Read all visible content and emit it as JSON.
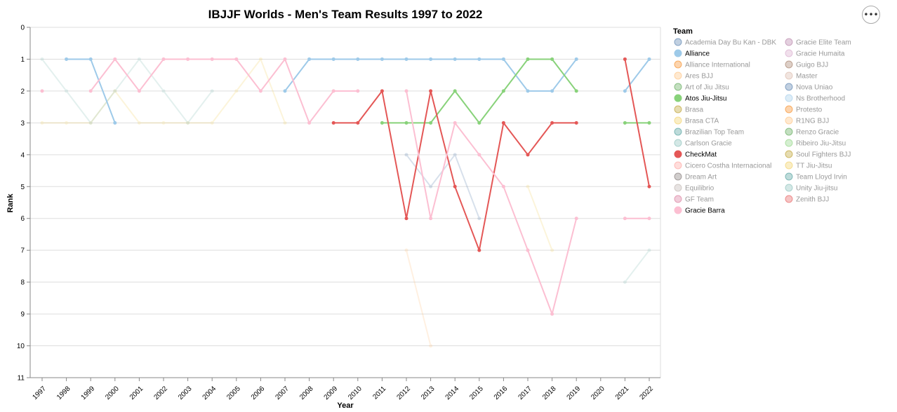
{
  "chart_data": {
    "type": "line",
    "title": "IBJJF Worlds - Men's Team Results 1997 to 2022",
    "xlabel": "Year",
    "ylabel": "Rank",
    "x": [
      "1997",
      "1998",
      "1999",
      "2000",
      "2001",
      "2002",
      "2003",
      "2004",
      "2005",
      "2006",
      "2007",
      "2008",
      "2009",
      "2010",
      "2011",
      "2012",
      "2013",
      "2014",
      "2015",
      "2016",
      "2017",
      "2018",
      "2019",
      "2020",
      "2021",
      "2022"
    ],
    "y_ticks": [
      "0",
      "1",
      "2",
      "3",
      "4",
      "5",
      "6",
      "7",
      "8",
      "9",
      "10",
      "11"
    ],
    "ylim": [
      0,
      11
    ],
    "y_reversed": true,
    "grid": "horizontal",
    "legend": {
      "title": "Team",
      "placement": "right",
      "columns": 2
    },
    "series": [
      {
        "name": "Academia Day Bu Kan - DBK",
        "color": "#4c78a8",
        "highlight": false,
        "points": []
      },
      {
        "name": "Alliance",
        "color": "#9ecae9",
        "highlight": true,
        "points": [
          [
            "1998",
            1
          ],
          [
            "1999",
            1
          ],
          [
            "2000",
            3
          ],
          [
            "2007",
            2
          ],
          [
            "2008",
            1
          ],
          [
            "2009",
            1
          ],
          [
            "2010",
            1
          ],
          [
            "2011",
            1
          ],
          [
            "2012",
            1
          ],
          [
            "2013",
            1
          ],
          [
            "2014",
            1
          ],
          [
            "2015",
            1
          ],
          [
            "2016",
            1
          ],
          [
            "2017",
            2
          ],
          [
            "2018",
            2
          ],
          [
            "2019",
            1
          ],
          [
            "2021",
            2
          ],
          [
            "2022",
            1
          ]
        ]
      },
      {
        "name": "Alliance International",
        "color": "#f58518",
        "highlight": false,
        "points": []
      },
      {
        "name": "Ares BJJ",
        "color": "#ffbf79",
        "highlight": false,
        "points": [
          [
            "2012",
            7
          ],
          [
            "2013",
            10
          ]
        ]
      },
      {
        "name": "Art of Jiu Jitsu",
        "color": "#54a24b",
        "highlight": false,
        "points": []
      },
      {
        "name": "Atos Jiu-Jitsu",
        "color": "#88d27a",
        "highlight": true,
        "points": [
          [
            "2011",
            3
          ],
          [
            "2012",
            3
          ],
          [
            "2013",
            3
          ],
          [
            "2014",
            2
          ],
          [
            "2015",
            3
          ],
          [
            "2016",
            2
          ],
          [
            "2017",
            1
          ],
          [
            "2018",
            1
          ],
          [
            "2019",
            2
          ],
          [
            "2021",
            3
          ],
          [
            "2022",
            3
          ]
        ]
      },
      {
        "name": "Brasa",
        "color": "#b79a20",
        "highlight": false,
        "points": []
      },
      {
        "name": "Brasa CTA",
        "color": "#f2cf5b",
        "highlight": false,
        "points": [
          [
            "1997",
            3
          ],
          [
            "1998",
            3
          ],
          [
            "1999",
            3
          ],
          [
            "2000",
            2
          ],
          [
            "2001",
            3
          ],
          [
            "2002",
            3
          ],
          [
            "2003",
            3
          ],
          [
            "2004",
            3
          ],
          [
            "2005",
            2
          ],
          [
            "2006",
            1
          ],
          [
            "2007",
            3
          ]
        ]
      },
      {
        "name": "Brazilian Top Team",
        "color": "#439894",
        "highlight": false,
        "points": []
      },
      {
        "name": "Carlson Gracie",
        "color": "#83bcb6",
        "highlight": false,
        "points": [
          [
            "1997",
            1
          ],
          [
            "1998",
            2
          ],
          [
            "1999",
            3
          ],
          [
            "2000",
            2
          ],
          [
            "2001",
            1
          ],
          [
            "2002",
            2
          ],
          [
            "2003",
            3
          ],
          [
            "2004",
            2
          ]
        ]
      },
      {
        "name": "CheckMat",
        "color": "#e45756",
        "highlight": true,
        "points": [
          [
            "2009",
            3
          ],
          [
            "2010",
            3
          ],
          [
            "2011",
            2
          ],
          [
            "2012",
            6
          ],
          [
            "2013",
            2
          ],
          [
            "2014",
            5
          ],
          [
            "2015",
            7
          ],
          [
            "2016",
            3
          ],
          [
            "2017",
            4
          ],
          [
            "2018",
            3
          ],
          [
            "2019",
            3
          ],
          [
            "2021",
            1
          ],
          [
            "2022",
            5
          ]
        ]
      },
      {
        "name": "Cicero Costha Internacional",
        "color": "#ff9d98",
        "highlight": false,
        "points": []
      },
      {
        "name": "Dream Art",
        "color": "#79706e",
        "highlight": false,
        "points": []
      },
      {
        "name": "Equilibrio",
        "color": "#bab0ac",
        "highlight": false,
        "points": []
      },
      {
        "name": "GF Team",
        "color": "#d67195",
        "highlight": false,
        "points": []
      },
      {
        "name": "Gracie Barra",
        "color": "#fcbfd2",
        "highlight": true,
        "points": [
          [
            "1997",
            2
          ],
          [
            "1999",
            2
          ],
          [
            "2000",
            1
          ],
          [
            "2001",
            2
          ],
          [
            "2002",
            1
          ],
          [
            "2003",
            1
          ],
          [
            "2004",
            1
          ],
          [
            "2005",
            1
          ],
          [
            "2006",
            2
          ],
          [
            "2007",
            1
          ],
          [
            "2008",
            3
          ],
          [
            "2009",
            2
          ],
          [
            "2010",
            2
          ],
          [
            "2012",
            2
          ],
          [
            "2013",
            6
          ],
          [
            "2014",
            3
          ],
          [
            "2015",
            4
          ],
          [
            "2016",
            5
          ],
          [
            "2017",
            7
          ],
          [
            "2018",
            9
          ],
          [
            "2019",
            6
          ],
          [
            "2021",
            6
          ],
          [
            "2022",
            6
          ]
        ]
      },
      {
        "name": "Gracie Elite Team",
        "color": "#b279a2",
        "highlight": false,
        "points": []
      },
      {
        "name": "Gracie Humaita",
        "color": "#d6a5c9",
        "highlight": false,
        "points": []
      },
      {
        "name": "Guigo BJJ",
        "color": "#9e765f",
        "highlight": false,
        "points": []
      },
      {
        "name": "Master",
        "color": "#d8b5a5",
        "highlight": false,
        "points": []
      },
      {
        "name": "Nova Uniao",
        "color": "#4c78a8",
        "highlight": false,
        "points": [
          [
            "2012",
            4
          ],
          [
            "2013",
            5
          ],
          [
            "2014",
            4
          ],
          [
            "2015",
            6
          ]
        ]
      },
      {
        "name": "Ns Brotherhood",
        "color": "#9ecae9",
        "highlight": false,
        "points": []
      },
      {
        "name": "Protesto",
        "color": "#f58518",
        "highlight": false,
        "points": []
      },
      {
        "name": "R1NG BJJ",
        "color": "#ffbf79",
        "highlight": false,
        "points": []
      },
      {
        "name": "Renzo Gracie",
        "color": "#54a24b",
        "highlight": false,
        "points": []
      },
      {
        "name": "Ribeiro Jiu-Jitsu",
        "color": "#88d27a",
        "highlight": false,
        "points": []
      },
      {
        "name": "Soul Fighters BJJ",
        "color": "#b79a20",
        "highlight": false,
        "points": []
      },
      {
        "name": "TT Jiu-Jitsu",
        "color": "#f2cf5b",
        "highlight": false,
        "points": [
          [
            "2017",
            5
          ],
          [
            "2018",
            7
          ]
        ]
      },
      {
        "name": "Team Lloyd Irvin",
        "color": "#439894",
        "highlight": false,
        "points": []
      },
      {
        "name": "Unity Jiu-jitsu",
        "color": "#83bcb6",
        "highlight": false,
        "points": [
          [
            "2021",
            8
          ],
          [
            "2022",
            7
          ]
        ]
      },
      {
        "name": "Zenith BJJ",
        "color": "#e45756",
        "highlight": false,
        "points": []
      }
    ]
  },
  "menu": {
    "label": "•••"
  }
}
